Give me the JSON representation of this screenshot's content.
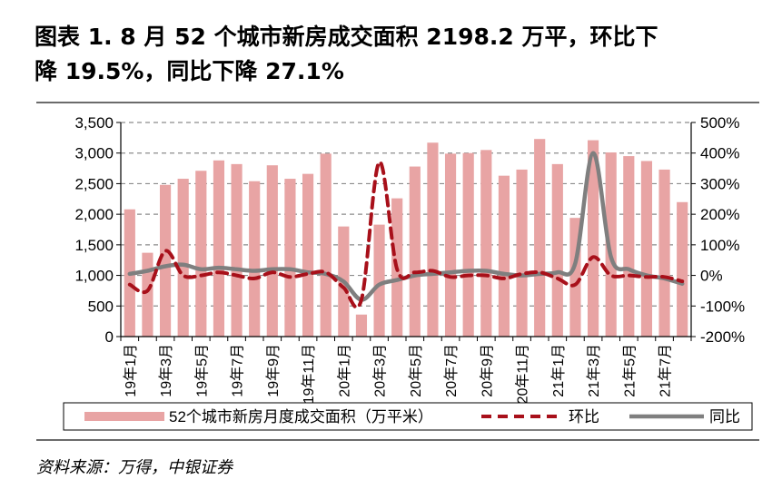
{
  "title_line1": "图表 1. 8 月 52 个城市新房成交面积 2198.2 万平，环比下",
  "title_line2": "降 19.5%，同比下降 27.1%",
  "source": "资料来源：万得，中银证券",
  "chart_data": {
    "type": "bar",
    "categories": [
      "19年1月",
      "19年2月",
      "19年3月",
      "19年4月",
      "19年5月",
      "19年6月",
      "19年7月",
      "19年8月",
      "19年9月",
      "19年10月",
      "19年11月",
      "19年12月",
      "20年1月",
      "20年2月",
      "20年3月",
      "20年4月",
      "20年5月",
      "20年6月",
      "20年7月",
      "20年8月",
      "20年9月",
      "20年10月",
      "20年11月",
      "20年12月",
      "21年1月",
      "21年2月",
      "21年3月",
      "21年4月",
      "21年5月",
      "21年6月",
      "21年7月",
      "21年8月"
    ],
    "tick_labels": [
      "19年1月",
      "19年3月",
      "19年5月",
      "19年7月",
      "19年9月",
      "19年11月",
      "20年1月",
      "20年3月",
      "20年5月",
      "20年7月",
      "20年9月",
      "20年11月",
      "21年1月",
      "21年3月",
      "21年5月",
      "21年7月"
    ],
    "series": [
      {
        "name": "52个城市新房月度成交面积（万平米）",
        "type": "bar",
        "axis": "left",
        "color": "#e8a4a4",
        "values": [
          2080,
          1370,
          2480,
          2580,
          2710,
          2880,
          2820,
          2540,
          2800,
          2580,
          2660,
          2990,
          1800,
          360,
          1830,
          2260,
          2780,
          3170,
          2990,
          3000,
          3050,
          2630,
          2730,
          3230,
          2820,
          1940,
          3210,
          3010,
          2950,
          2870,
          2730,
          2198.2
        ]
      },
      {
        "name": "环比",
        "type": "line",
        "axis": "right",
        "color": "#a8101a",
        "dash": true,
        "values": [
          -30,
          -50,
          80,
          0,
          0,
          10,
          0,
          -10,
          10,
          -5,
          5,
          10,
          -40,
          -80,
          370,
          20,
          10,
          15,
          -5,
          0,
          0,
          -10,
          5,
          10,
          -10,
          -30,
          60,
          0,
          0,
          -5,
          -5,
          -19.5
        ]
      },
      {
        "name": "同比",
        "type": "line",
        "axis": "right",
        "color": "#7f7f7f",
        "dash": false,
        "values": [
          5,
          15,
          30,
          35,
          20,
          25,
          20,
          15,
          20,
          20,
          10,
          5,
          -20,
          -80,
          -30,
          -15,
          0,
          5,
          10,
          15,
          15,
          5,
          0,
          5,
          10,
          40,
          400,
          60,
          20,
          0,
          -10,
          -27.1
        ]
      }
    ],
    "y_left": {
      "min": 0,
      "max": 3500,
      "ticks": [
        "0",
        "500",
        "1,000",
        "1,500",
        "2,000",
        "2,500",
        "3,000",
        "3,500"
      ]
    },
    "y_right": {
      "min": -200,
      "max": 500,
      "ticks": [
        "-200%",
        "-100%",
        "0%",
        "100%",
        "200%",
        "300%",
        "400%",
        "500%"
      ]
    },
    "legend": {
      "position": "bottom",
      "labels": [
        "52个城市新房月度成交面积（万平米）",
        "环比",
        "同比"
      ]
    },
    "grid": true
  }
}
